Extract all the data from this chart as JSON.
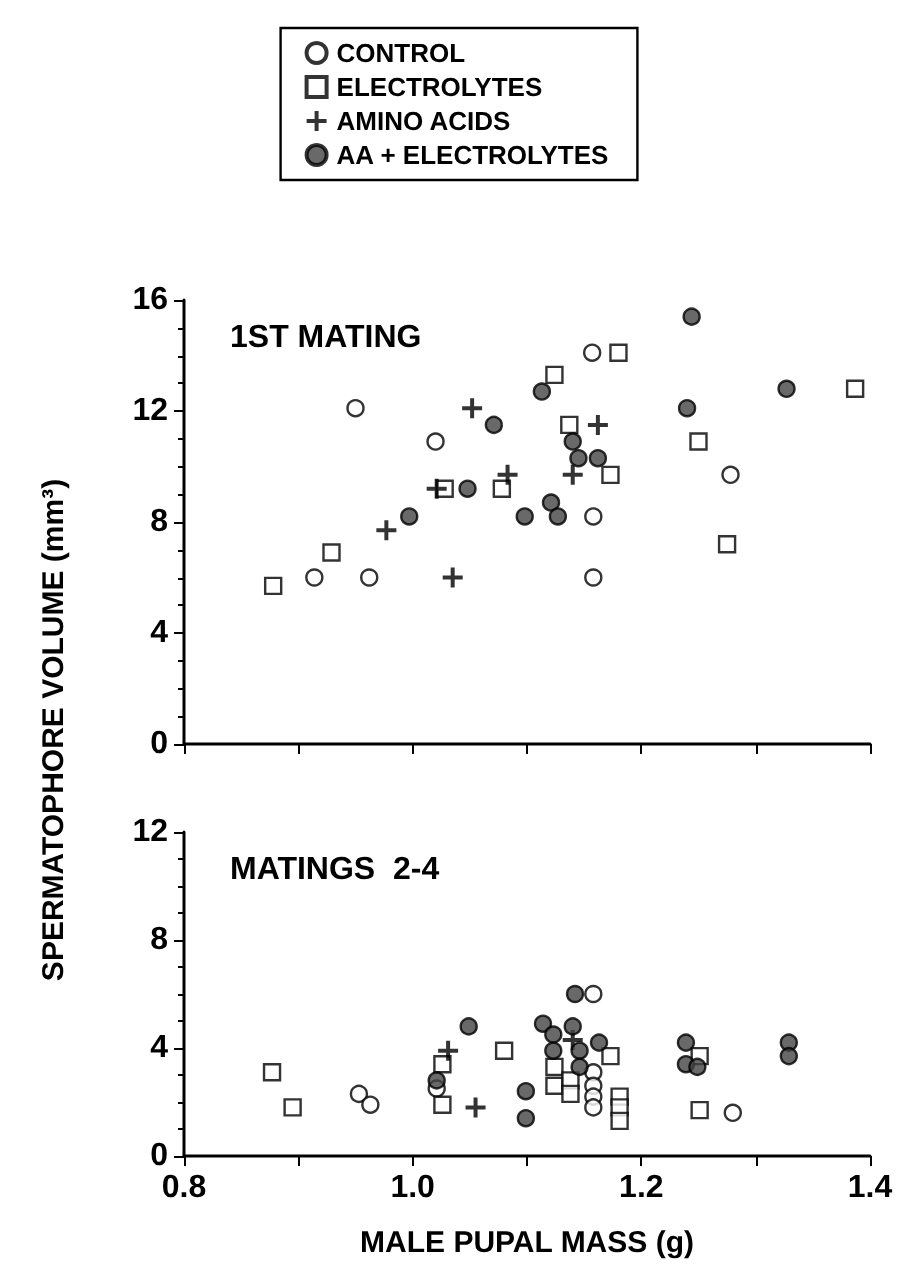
{
  "chart_data": [
    {
      "type": "scatter",
      "title": "1ST MATING",
      "ylabel": "SPERMATOPHORE VOLUME (mm³)",
      "xlim": [
        0.8,
        1.4
      ],
      "xticks": [
        0.8,
        1,
        1.2,
        1.4
      ],
      "ylim": [
        0,
        16
      ],
      "yticks": [
        0,
        4,
        8,
        12,
        16
      ],
      "tick_labels": "y",
      "grid": false,
      "legend": "top",
      "series": [
        {
          "name": "CONTROL",
          "color": "#ffffff",
          "marker": "circle",
          "x": [
            0.914,
            0.962,
            0.95,
            1.02,
            1.157,
            1.158,
            1.158,
            1.278
          ],
          "values": [
            6.0,
            6.0,
            12.1,
            10.9,
            14.1,
            8.2,
            6.0,
            9.7
          ]
        },
        {
          "name": "ELECTROLYTES",
          "color": "#ffffff",
          "marker": "square",
          "x": [
            0.878,
            0.929,
            1.028,
            1.078,
            1.124,
            1.137,
            1.173,
            1.18,
            1.25,
            1.275,
            1.387
          ],
          "values": [
            5.7,
            6.9,
            9.2,
            9.2,
            13.3,
            11.5,
            9.7,
            14.1,
            10.9,
            7.2,
            12.8
          ]
        },
        {
          "name": "AMINO ACIDS",
          "color": "#000000",
          "marker": "cross",
          "x": [
            0.977,
            1.021,
            1.035,
            1.052,
            1.083,
            1.14,
            1.162
          ],
          "values": [
            7.7,
            9.2,
            6.0,
            12.1,
            9.7,
            9.7,
            11.5
          ]
        },
        {
          "name": "AA + ELECTROLYTES",
          "color": "#444444",
          "marker": "circle",
          "x": [
            0.997,
            1.048,
            1.071,
            1.098,
            1.113,
            1.121,
            1.127,
            1.14,
            1.145,
            1.162,
            1.24,
            1.244,
            1.327
          ],
          "values": [
            8.2,
            9.2,
            11.5,
            8.2,
            12.7,
            8.7,
            8.2,
            10.9,
            10.3,
            10.3,
            12.1,
            15.4,
            12.8
          ]
        }
      ]
    },
    {
      "type": "scatter",
      "title": "MATINGS  2-4",
      "xlabel": "MALE PUPAL MASS (g)",
      "xlim": [
        0.8,
        1.4
      ],
      "xticks": [
        {
          "value": 0.8,
          "label": "0.8"
        },
        {
          "value": 1.0,
          "label": "1.0"
        },
        {
          "value": 1.2,
          "label": "1.2"
        },
        {
          "value": 1.4,
          "label": "1.4"
        }
      ],
      "ylim": [
        0,
        12
      ],
      "yticks": [
        0,
        4,
        8,
        12
      ],
      "grid": false,
      "series": [
        {
          "color": "#ffffff",
          "marker": "circle",
          "x": [
            0.953,
            0.963,
            1.021,
            1.158,
            1.158,
            1.158,
            1.158,
            1.158,
            1.28
          ],
          "values": [
            2.3,
            1.9,
            2.5,
            6.0,
            3.1,
            2.6,
            2.2,
            1.8,
            1.6
          ]
        },
        {
          "color": "#ffffff",
          "marker": "square",
          "x": [
            0.877,
            0.895,
            1.026,
            1.026,
            1.08,
            1.124,
            1.124,
            1.138,
            1.138,
            1.173,
            1.181,
            1.181,
            1.181,
            1.251,
            1.251
          ],
          "values": [
            3.1,
            1.8,
            3.4,
            1.9,
            3.9,
            3.3,
            2.6,
            2.8,
            2.3,
            3.7,
            2.2,
            1.8,
            1.3,
            3.7,
            1.7
          ]
        },
        {
          "color": "#000000",
          "marker": "cross",
          "x": [
            1.031,
            1.055,
            1.14
          ],
          "values": [
            3.9,
            1.8,
            4.3
          ]
        },
        {
          "color": "#444444",
          "marker": "circle",
          "x": [
            1.021,
            1.049,
            1.099,
            1.099,
            1.114,
            1.123,
            1.123,
            1.142,
            1.14,
            1.146,
            1.146,
            1.163,
            1.239,
            1.239,
            1.249,
            1.329,
            1.329
          ],
          "values": [
            2.8,
            4.8,
            2.4,
            1.4,
            4.9,
            4.5,
            3.9,
            6.0,
            4.8,
            3.9,
            3.3,
            4.2,
            4.2,
            3.4,
            3.3,
            4.2,
            3.7
          ]
        }
      ]
    }
  ]
}
